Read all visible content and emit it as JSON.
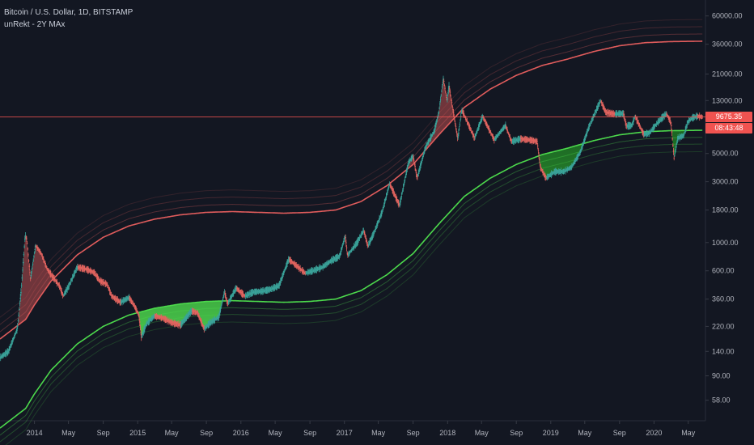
{
  "header": {
    "symbol_title": "Bitcoin / U.S. Dollar, 1D, BITSTAMP",
    "indicator_title": "unRekt - 2Y MAx"
  },
  "price_axis": {
    "last_price_label": "9675.35",
    "countdown_label": "08:43:48",
    "last_price": 9675.35
  },
  "colors": {
    "background": "#131722",
    "axis_text": "#b2b5be",
    "ma_green": "#4cd94c",
    "ma_red": "#e05c5c",
    "band_fill": "#23a823",
    "candle_up": "#3aa39a",
    "candle_down": "#e2645f",
    "price_line": "#f05350"
  },
  "chart_data": {
    "type": "line",
    "title": "Bitcoin / U.S. Dollar, 1D, BITSTAMP",
    "scale": "log",
    "ylim": [
      40,
      80000
    ],
    "xlim": [
      "2013-09-01",
      "2020-07-01"
    ],
    "y_ticks": [
      58,
      90,
      140,
      220,
      360,
      600,
      1000,
      1800,
      3000,
      5000,
      8000,
      13000,
      21000,
      36000,
      60000
    ],
    "y_tick_labels": [
      "58.00",
      "90.00",
      "140.00",
      "220.00",
      "360.00",
      "600.00",
      "1000.00",
      "1800.00",
      "3000.00",
      "5000.00",
      "8000.00",
      "13000.00",
      "21000.00",
      "36000.00",
      "60000.00"
    ],
    "x_ticks": [
      {
        "date": "2014-01-01",
        "label": "2014"
      },
      {
        "date": "2014-05-01",
        "label": "May"
      },
      {
        "date": "2014-09-01",
        "label": "Sep"
      },
      {
        "date": "2015-01-01",
        "label": "2015"
      },
      {
        "date": "2015-05-01",
        "label": "May"
      },
      {
        "date": "2015-09-01",
        "label": "Sep"
      },
      {
        "date": "2016-01-01",
        "label": "2016"
      },
      {
        "date": "2016-05-01",
        "label": "May"
      },
      {
        "date": "2016-09-01",
        "label": "Sep"
      },
      {
        "date": "2017-01-01",
        "label": "2017"
      },
      {
        "date": "2017-05-01",
        "label": "May"
      },
      {
        "date": "2017-09-01",
        "label": "Sep"
      },
      {
        "date": "2018-01-01",
        "label": "2018"
      },
      {
        "date": "2018-05-01",
        "label": "May"
      },
      {
        "date": "2018-09-01",
        "label": "Sep"
      },
      {
        "date": "2019-01-01",
        "label": "2019"
      },
      {
        "date": "2019-05-01",
        "label": "May"
      },
      {
        "date": "2019-09-01",
        "label": "Sep"
      },
      {
        "date": "2020-01-01",
        "label": "2020"
      },
      {
        "date": "2020-05-01",
        "label": "May"
      }
    ],
    "series": [
      {
        "kind": "price",
        "points": [
          [
            "2013-09-01",
            125
          ],
          [
            "2013-10-01",
            140
          ],
          [
            "2013-11-01",
            210
          ],
          [
            "2013-11-15",
            430
          ],
          [
            "2013-11-29",
            1150
          ],
          [
            "2013-12-05",
            1050
          ],
          [
            "2013-12-18",
            520
          ],
          [
            "2014-01-05",
            950
          ],
          [
            "2014-01-25",
            820
          ],
          [
            "2014-02-15",
            620
          ],
          [
            "2014-03-01",
            560
          ],
          [
            "2014-04-01",
            450
          ],
          [
            "2014-04-12",
            380
          ],
          [
            "2014-05-01",
            450
          ],
          [
            "2014-06-01",
            640
          ],
          [
            "2014-07-01",
            620
          ],
          [
            "2014-08-01",
            580
          ],
          [
            "2014-08-20",
            500
          ],
          [
            "2014-09-15",
            470
          ],
          [
            "2014-10-01",
            380
          ],
          [
            "2014-11-01",
            340
          ],
          [
            "2014-12-01",
            370
          ],
          [
            "2014-12-20",
            320
          ],
          [
            "2015-01-05",
            270
          ],
          [
            "2015-01-14",
            180
          ],
          [
            "2015-02-01",
            230
          ],
          [
            "2015-03-01",
            265
          ],
          [
            "2015-04-01",
            255
          ],
          [
            "2015-05-01",
            235
          ],
          [
            "2015-06-01",
            225
          ],
          [
            "2015-07-10",
            290
          ],
          [
            "2015-08-01",
            280
          ],
          [
            "2015-08-24",
            210
          ],
          [
            "2015-09-15",
            235
          ],
          [
            "2015-10-15",
            260
          ],
          [
            "2015-11-04",
            410
          ],
          [
            "2015-11-15",
            330
          ],
          [
            "2015-12-15",
            440
          ],
          [
            "2016-01-15",
            380
          ],
          [
            "2016-02-15",
            410
          ],
          [
            "2016-03-15",
            415
          ],
          [
            "2016-04-15",
            430
          ],
          [
            "2016-05-15",
            460
          ],
          [
            "2016-06-18",
            740
          ],
          [
            "2016-07-15",
            660
          ],
          [
            "2016-08-15",
            575
          ],
          [
            "2016-09-15",
            605
          ],
          [
            "2016-10-15",
            640
          ],
          [
            "2016-11-15",
            720
          ],
          [
            "2016-12-15",
            780
          ],
          [
            "2017-01-04",
            1130
          ],
          [
            "2017-01-12",
            790
          ],
          [
            "2017-02-15",
            1000
          ],
          [
            "2017-03-10",
            1250
          ],
          [
            "2017-03-25",
            940
          ],
          [
            "2017-04-15",
            1180
          ],
          [
            "2017-05-15",
            1750
          ],
          [
            "2017-06-10",
            2900
          ],
          [
            "2017-07-15",
            1950
          ],
          [
            "2017-08-15",
            4200
          ],
          [
            "2017-09-01",
            4800
          ],
          [
            "2017-09-15",
            3200
          ],
          [
            "2017-10-15",
            5600
          ],
          [
            "2017-11-15",
            7500
          ],
          [
            "2017-12-01",
            10500
          ],
          [
            "2017-12-17",
            19500
          ],
          [
            "2017-12-30",
            13000
          ],
          [
            "2018-01-06",
            17000
          ],
          [
            "2018-02-06",
            6500
          ],
          [
            "2018-02-20",
            11000
          ],
          [
            "2018-03-15",
            8500
          ],
          [
            "2018-04-06",
            6600
          ],
          [
            "2018-05-05",
            9800
          ],
          [
            "2018-06-15",
            6400
          ],
          [
            "2018-07-25",
            8300
          ],
          [
            "2018-08-15",
            6200
          ],
          [
            "2018-09-15",
            6500
          ],
          [
            "2018-10-15",
            6400
          ],
          [
            "2018-11-14",
            6200
          ],
          [
            "2018-11-25",
            3900
          ],
          [
            "2018-12-15",
            3200
          ],
          [
            "2019-01-15",
            3600
          ],
          [
            "2019-02-15",
            3600
          ],
          [
            "2019-03-15",
            3900
          ],
          [
            "2019-04-15",
            5100
          ],
          [
            "2019-05-15",
            8000
          ],
          [
            "2019-06-26",
            13000
          ],
          [
            "2019-07-15",
            10500
          ],
          [
            "2019-08-15",
            10200
          ],
          [
            "2019-09-15",
            10300
          ],
          [
            "2019-09-25",
            8200
          ],
          [
            "2019-10-15",
            8300
          ],
          [
            "2019-10-26",
            9800
          ],
          [
            "2019-11-25",
            7100
          ],
          [
            "2019-12-15",
            7200
          ],
          [
            "2020-01-15",
            8800
          ],
          [
            "2020-02-14",
            10300
          ],
          [
            "2020-03-01",
            8700
          ],
          [
            "2020-03-12",
            4600
          ],
          [
            "2020-03-25",
            6600
          ],
          [
            "2020-04-15",
            6900
          ],
          [
            "2020-04-30",
            8900
          ],
          [
            "2020-05-15",
            9500
          ],
          [
            "2020-06-01",
            9800
          ],
          [
            "2020-06-20",
            9675
          ]
        ]
      },
      {
        "kind": "ma",
        "points": [
          [
            "2013-09-01",
            35
          ],
          [
            "2013-12-01",
            50
          ],
          [
            "2014-01-01",
            65
          ],
          [
            "2014-03-01",
            100
          ],
          [
            "2014-06-01",
            160
          ],
          [
            "2014-09-01",
            220
          ],
          [
            "2014-12-01",
            270
          ],
          [
            "2015-03-01",
            305
          ],
          [
            "2015-06-01",
            330
          ],
          [
            "2015-09-01",
            345
          ],
          [
            "2015-12-01",
            350
          ],
          [
            "2016-03-01",
            345
          ],
          [
            "2016-06-01",
            340
          ],
          [
            "2016-09-01",
            345
          ],
          [
            "2016-12-01",
            360
          ],
          [
            "2017-03-01",
            420
          ],
          [
            "2017-06-01",
            560
          ],
          [
            "2017-09-01",
            820
          ],
          [
            "2017-12-01",
            1400
          ],
          [
            "2018-03-01",
            2300
          ],
          [
            "2018-06-01",
            3200
          ],
          [
            "2018-09-01",
            4100
          ],
          [
            "2018-12-01",
            4900
          ],
          [
            "2019-03-01",
            5500
          ],
          [
            "2019-06-01",
            6300
          ],
          [
            "2019-09-01",
            7000
          ],
          [
            "2019-12-01",
            7400
          ],
          [
            "2020-03-01",
            7550
          ],
          [
            "2020-06-20",
            7600
          ]
        ]
      }
    ],
    "band_multipliers_below": [
      0.88,
      0.78,
      0.68
    ],
    "band_multipliers_above": [
      5,
      5.7,
      6.5,
      7.4
    ]
  }
}
